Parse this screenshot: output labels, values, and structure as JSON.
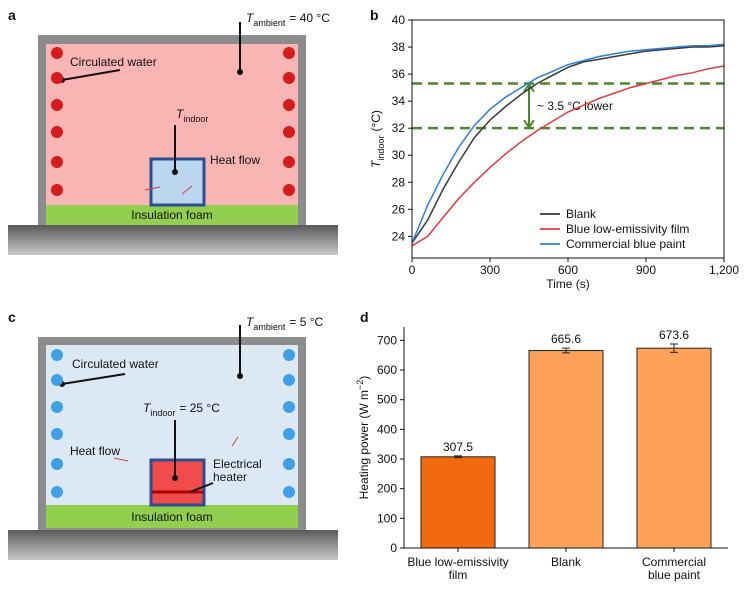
{
  "panel_a": {
    "label": "a",
    "ambient": {
      "symbol": "T",
      "sub": "ambient",
      "value": "= 40 °C"
    },
    "water": "Circulated water",
    "indoor": {
      "symbol": "T",
      "sub": "indoor"
    },
    "heat_flow": "Heat flow",
    "foam": "Insulation foam"
  },
  "panel_c": {
    "label": "c",
    "ambient": {
      "symbol": "T",
      "sub": "ambient",
      "value": "= 5 °C"
    },
    "water": "Circulated water",
    "indoor": {
      "symbol": "T",
      "sub": "indoor",
      "value": "= 25 °C"
    },
    "heat_flow": "Heat flow",
    "heater": [
      "Electrical",
      "heater"
    ],
    "foam": "Insulation foam"
  },
  "chart_data": [
    {
      "type": "line",
      "panel_label": "b",
      "xlabel": "Time (s)",
      "ylabel": {
        "symbol": "T",
        "sub": "indoor",
        "unit": "(°C)"
      },
      "x": [
        0,
        60,
        120,
        180,
        240,
        300,
        360,
        420,
        480,
        540,
        600,
        660,
        720,
        780,
        840,
        900,
        960,
        1020,
        1080,
        1140,
        1200
      ],
      "series": [
        {
          "name": "Blank",
          "color": "#3a3a3a",
          "values": [
            23.5,
            25.2,
            27.5,
            29.5,
            31.3,
            32.6,
            33.6,
            34.5,
            35.3,
            35.9,
            36.5,
            36.9,
            37.1,
            37.3,
            37.5,
            37.7,
            37.8,
            37.9,
            38.0,
            38.0,
            38.1
          ]
        },
        {
          "name": "Blue low-emissivity film",
          "color": "#e8383d",
          "values": [
            23.3,
            24.0,
            25.4,
            26.8,
            28.0,
            29.1,
            30.1,
            31.0,
            31.8,
            32.5,
            33.2,
            33.7,
            34.2,
            34.6,
            35.0,
            35.3,
            35.6,
            35.9,
            36.1,
            36.4,
            36.6
          ]
        },
        {
          "name": "Commercial blue paint",
          "color": "#2d7fd8",
          "values": [
            23.5,
            26.3,
            28.6,
            30.6,
            32.2,
            33.4,
            34.3,
            35.0,
            35.7,
            36.2,
            36.7,
            37.0,
            37.3,
            37.5,
            37.7,
            37.8,
            37.9,
            38.0,
            38.1,
            38.1,
            38.2
          ]
        }
      ],
      "reference_lines": [
        35.3,
        32
      ],
      "reference_color": "#4a8a2a",
      "annotation": {
        "text": "~ 3.5 °C lower",
        "x": 450
      },
      "xlim": [
        0,
        1200
      ],
      "xticks": [
        0,
        300,
        600,
        900,
        {
          "value": 1200,
          "label": "1,200"
        }
      ],
      "ylim": [
        22.4,
        40
      ],
      "yticks": [
        24,
        26,
        28,
        30,
        32,
        34,
        36,
        38,
        40
      ],
      "legend": "lower right"
    },
    {
      "type": "bar",
      "panel_label": "d",
      "ylabel": {
        "text": "Heating power (W m",
        "sup": "−2",
        "end": ")"
      },
      "categories": [
        "Blue low-emissivity\nfilm",
        "Blank",
        "Commercial\nblue paint"
      ],
      "values": [
        307.5,
        665.6,
        673.6
      ],
      "errors": [
        3,
        8,
        14
      ],
      "colors": [
        "#f26a10",
        "#ffa259",
        "#ffa259"
      ],
      "ylim": [
        0,
        745
      ],
      "yticks": [
        0,
        100,
        200,
        300,
        400,
        500,
        600,
        700
      ]
    }
  ]
}
